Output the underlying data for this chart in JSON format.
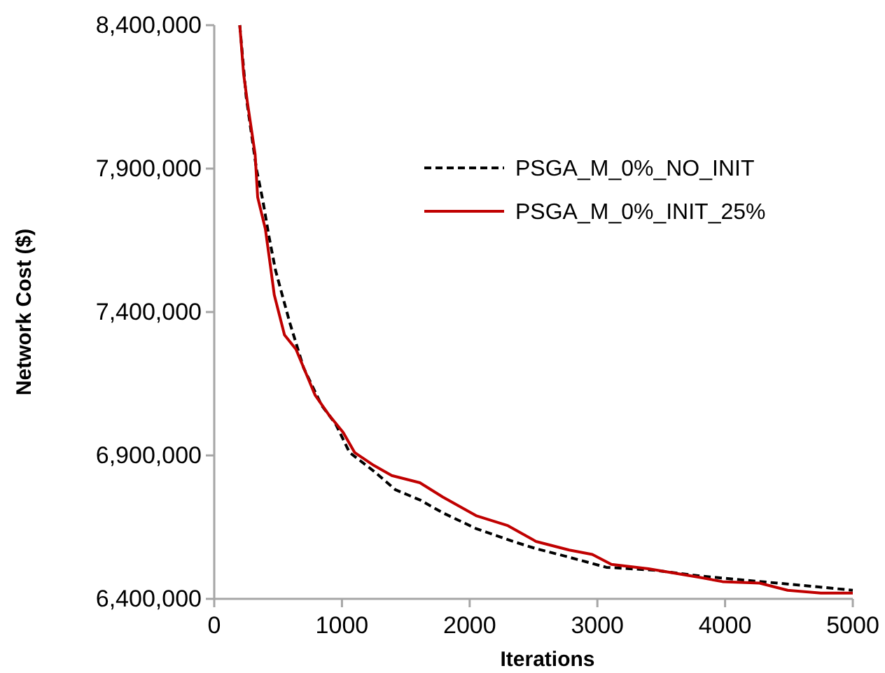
{
  "chart_data": {
    "type": "line",
    "xlabel": "Iterations",
    "ylabel": "Network Cost ($)",
    "xlim": [
      0,
      5000
    ],
    "xticks": [
      0,
      1000,
      2000,
      3000,
      4000,
      5000
    ],
    "ylim": [
      6400000,
      8400000
    ],
    "yticks": [
      {
        "value": 6400000,
        "label": "6,400,000"
      },
      {
        "value": 6900000,
        "label": "6,900,000"
      },
      {
        "value": 7400000,
        "label": "7,400,000"
      },
      {
        "value": 7900000,
        "label": "7,900,000"
      },
      {
        "value": 8400000,
        "label": "8,400,000"
      }
    ],
    "grid": false,
    "legend": "top right",
    "marker": "none",
    "series": [
      {
        "name": "PSGA_M_0%_NO_INIT",
        "color": "#000000",
        "line_style": "dashed",
        "x": [
          200,
          250,
          330,
          380,
          430,
          480,
          590,
          700,
          840,
          950,
          1060,
          1250,
          1420,
          1610,
          1790,
          2050,
          2340,
          2520,
          2780,
          3070,
          3440,
          3800,
          4160,
          4530,
          5000
        ],
        "values": [
          8400000,
          8150000,
          7900000,
          7790000,
          7660000,
          7545000,
          7365000,
          7205000,
          7075000,
          7010000,
          6910000,
          6845000,
          6780000,
          6745000,
          6700000,
          6645000,
          6600000,
          6575000,
          6545000,
          6510000,
          6500000,
          6480000,
          6465000,
          6450000,
          6430000
        ]
      },
      {
        "name": "PSGA_M_0%_INIT_25%",
        "color": "#c00000",
        "line_style": "solid",
        "x": [
          200,
          230,
          260,
          320,
          340,
          400,
          440,
          470,
          550,
          640,
          720,
          790,
          900,
          1010,
          1100,
          1250,
          1390,
          1610,
          1790,
          2050,
          2300,
          2520,
          2780,
          2960,
          3110,
          3400,
          3800,
          3980,
          4270,
          4490,
          4750,
          5000
        ],
        "values": [
          8400000,
          8230000,
          8130000,
          7950000,
          7800000,
          7690000,
          7560000,
          7460000,
          7320000,
          7270000,
          7185000,
          7110000,
          7040000,
          6980000,
          6910000,
          6865000,
          6830000,
          6805000,
          6755000,
          6690000,
          6655000,
          6600000,
          6570000,
          6555000,
          6520000,
          6505000,
          6475000,
          6460000,
          6455000,
          6430000,
          6420000,
          6420000
        ]
      }
    ]
  }
}
